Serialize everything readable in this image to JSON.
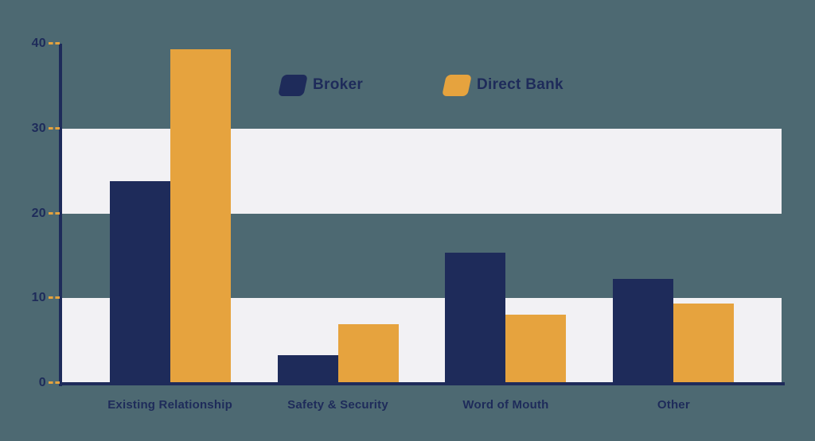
{
  "page": {
    "background_color": "#4d6972",
    "band_color": "#f2f1f4",
    "text_color": "#1e2b5a"
  },
  "legend": {
    "items": [
      {
        "label": "Broker",
        "color": "#1e2b5a"
      },
      {
        "label": "Direct Bank",
        "color": "#e6a33e"
      }
    ]
  },
  "chart_data": {
    "type": "bar",
    "title": "",
    "xlabel": "",
    "ylabel": "",
    "categories": [
      "Existing Relationship",
      "Safety & Security",
      "Word of Mouth",
      "Other"
    ],
    "series": [
      {
        "name": "Broker",
        "color": "#1e2b5a",
        "values": [
          23.8,
          3.3,
          15.4,
          12.3
        ]
      },
      {
        "name": "Direct Bank",
        "color": "#e6a33e",
        "values": [
          39.3,
          6.9,
          8.1,
          9.4
        ]
      }
    ],
    "ylim": [
      0,
      40
    ],
    "y_ticks": [
      0,
      10,
      20,
      30,
      40
    ],
    "grid": "alternating horizontal light bands",
    "band_ranges": [
      [
        0,
        10
      ],
      [
        20,
        30
      ]
    ],
    "band_color": "#f2f1f4",
    "axis_color": "#1e2b5a",
    "tick_color": "#e6a33e",
    "legend_position": "top-center"
  }
}
